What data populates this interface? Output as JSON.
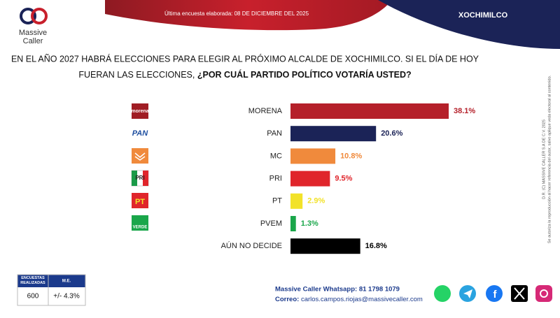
{
  "header": {
    "survey_date": "Última encuesta elaborada: 08 DE DICIEMBRE DEL 2025",
    "region": "XOCHIMILCO",
    "brand_line1": "Massive",
    "brand_line2": "Caller"
  },
  "question": {
    "line1": "EN EL AÑO 2027 HABRÁ ELECCIONES PARA ELEGIR AL PRÓXIMO ALCALDE DE XOCHIMILCO. SI EL DÍA DE HOY",
    "line2_plain": "FUERAN LAS ELECCIONES, ",
    "line2_bold": "¿POR CUÁL PARTIDO POLÍTICO VOTARÍA USTED?"
  },
  "party_logos": [
    "morena",
    "PAN",
    "PRI",
    "PT",
    "VERDE"
  ],
  "chart_data": {
    "type": "bar",
    "orientation": "horizontal",
    "categories": [
      "MORENA",
      "PAN",
      "MC",
      "PRI",
      "PT",
      "PVEM",
      "AÚN NO DECIDE"
    ],
    "values": [
      38.1,
      20.6,
      10.8,
      9.5,
      2.9,
      1.3,
      16.8
    ],
    "value_labels": [
      "38.1%",
      "20.6%",
      "10.8%",
      "9.5%",
      "2.9%",
      "1.3%",
      "16.8%"
    ],
    "colors": [
      "#b5202a",
      "#1b2357",
      "#f08a3c",
      "#e0252b",
      "#f2e229",
      "#1aa64a",
      "#000000"
    ]
  },
  "side_note": {
    "line1": "D.R. (C) MASSIVE CALLER S.A DE C.V. 2025",
    "line2": "Se autoriza la reproducción al hacer referencia del autor, salvo aplique veda electoral al contenido."
  },
  "survey_table": {
    "header": [
      "ENCUESTAS REALIZADAS",
      "M.E."
    ],
    "row": [
      "600",
      "+/- 4.3%"
    ]
  },
  "footer": {
    "whatsapp": "Massive Caller Whatsapp: 81 1798 1079",
    "email_label": "Correo: ",
    "email": "carlos.campos.riojas@massivecaller.com"
  }
}
